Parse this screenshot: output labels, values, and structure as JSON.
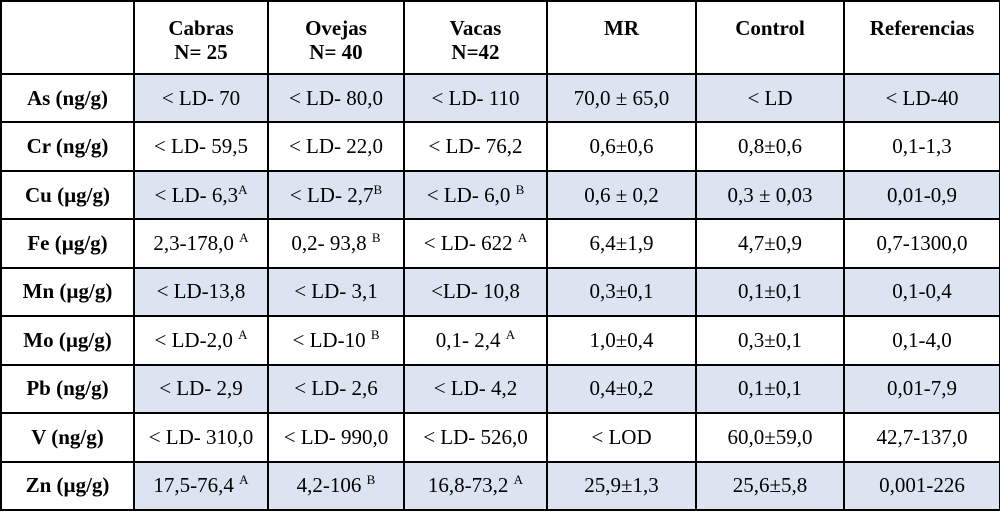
{
  "header": {
    "corner": "",
    "columns": [
      {
        "line1": "Cabras",
        "line2": "N= 25"
      },
      {
        "line1": "Ovejas",
        "line2": "N= 40"
      },
      {
        "line1": "Vacas",
        "line2": "N=42"
      },
      {
        "line1": "MR",
        "line2": ""
      },
      {
        "line1": "Control",
        "line2": ""
      },
      {
        "line1": "Referencias",
        "line2": ""
      }
    ]
  },
  "rows": [
    {
      "label": "As (ng/g)",
      "cells": [
        {
          "v": "< LD- 70",
          "s": ""
        },
        {
          "v": "< LD- 80,0",
          "s": ""
        },
        {
          "v": "< LD- 110",
          "s": ""
        },
        {
          "v": "70,0 ± 65,0",
          "s": ""
        },
        {
          "v": "< LD",
          "s": ""
        },
        {
          "v": "< LD-40",
          "s": ""
        }
      ]
    },
    {
      "label": "Cr (ng/g)",
      "cells": [
        {
          "v": "< LD- 59,5",
          "s": ""
        },
        {
          "v": "< LD- 22,0",
          "s": ""
        },
        {
          "v": "< LD- 76,2",
          "s": ""
        },
        {
          "v": "0,6±0,6",
          "s": ""
        },
        {
          "v": "0,8±0,6",
          "s": ""
        },
        {
          "v": "0,1-1,3",
          "s": ""
        }
      ]
    },
    {
      "label": "Cu (µg/g)",
      "cells": [
        {
          "v": "< LD- 6,3",
          "s": "A"
        },
        {
          "v": "< LD- 2,7",
          "s": "B"
        },
        {
          "v": "< LD- 6,0 ",
          "s": "B"
        },
        {
          "v": "0,6 ± 0,2",
          "s": ""
        },
        {
          "v": "0,3 ± 0,03",
          "s": ""
        },
        {
          "v": "0,01-0,9",
          "s": ""
        }
      ]
    },
    {
      "label": "Fe (µg/g)",
      "cells": [
        {
          "v": "2,3-178,0 ",
          "s": "A"
        },
        {
          "v": "0,2- 93,8 ",
          "s": "B"
        },
        {
          "v": "< LD- 622 ",
          "s": "A"
        },
        {
          "v": "6,4±1,9",
          "s": ""
        },
        {
          "v": "4,7±0,9",
          "s": ""
        },
        {
          "v": "0,7-1300,0",
          "s": ""
        }
      ]
    },
    {
      "label": "Mn (µg/g)",
      "cells": [
        {
          "v": "< LD-13,8",
          "s": ""
        },
        {
          "v": "< LD- 3,1",
          "s": ""
        },
        {
          "v": "<LD- 10,8",
          "s": ""
        },
        {
          "v": "0,3±0,1",
          "s": ""
        },
        {
          "v": "0,1±0,1",
          "s": ""
        },
        {
          "v": "0,1-0,4",
          "s": ""
        }
      ]
    },
    {
      "label": "Mo (µg/g)",
      "cells": [
        {
          "v": "< LD-2,0 ",
          "s": "A"
        },
        {
          "v": "< LD-10 ",
          "s": "B"
        },
        {
          "v": "0,1- 2,4 ",
          "s": "A"
        },
        {
          "v": "1,0±0,4",
          "s": ""
        },
        {
          "v": "0,3±0,1",
          "s": ""
        },
        {
          "v": "0,1-4,0",
          "s": ""
        }
      ]
    },
    {
      "label": "Pb (ng/g)",
      "cells": [
        {
          "v": "< LD- 2,9",
          "s": ""
        },
        {
          "v": "< LD- 2,6",
          "s": ""
        },
        {
          "v": "< LD- 4,2",
          "s": ""
        },
        {
          "v": "0,4±0,2",
          "s": ""
        },
        {
          "v": "0,1±0,1",
          "s": ""
        },
        {
          "v": "0,01-7,9",
          "s": ""
        }
      ]
    },
    {
      "label": "V (ng/g)",
      "cells": [
        {
          "v": "< LD- 310,0",
          "s": ""
        },
        {
          "v": "< LD- 990,0",
          "s": ""
        },
        {
          "v": "< LD- 526,0",
          "s": ""
        },
        {
          "v": "< LOD",
          "s": ""
        },
        {
          "v": "60,0±59,0",
          "s": ""
        },
        {
          "v": "42,7-137,0",
          "s": ""
        }
      ]
    },
    {
      "label": "Zn (µg/g)",
      "cells": [
        {
          "v": "17,5-76,4 ",
          "s": "A"
        },
        {
          "v": "4,2-106 ",
          "s": "B"
        },
        {
          "v": "16,8-73,2 ",
          "s": "A"
        },
        {
          "v": "25,9±1,3",
          "s": ""
        },
        {
          "v": "25,6±5,8",
          "s": ""
        },
        {
          "v": "0,001-226",
          "s": ""
        }
      ]
    }
  ],
  "colors": {
    "shade": "#dbe4f0",
    "border": "#000000",
    "plain": "#ffffff"
  }
}
